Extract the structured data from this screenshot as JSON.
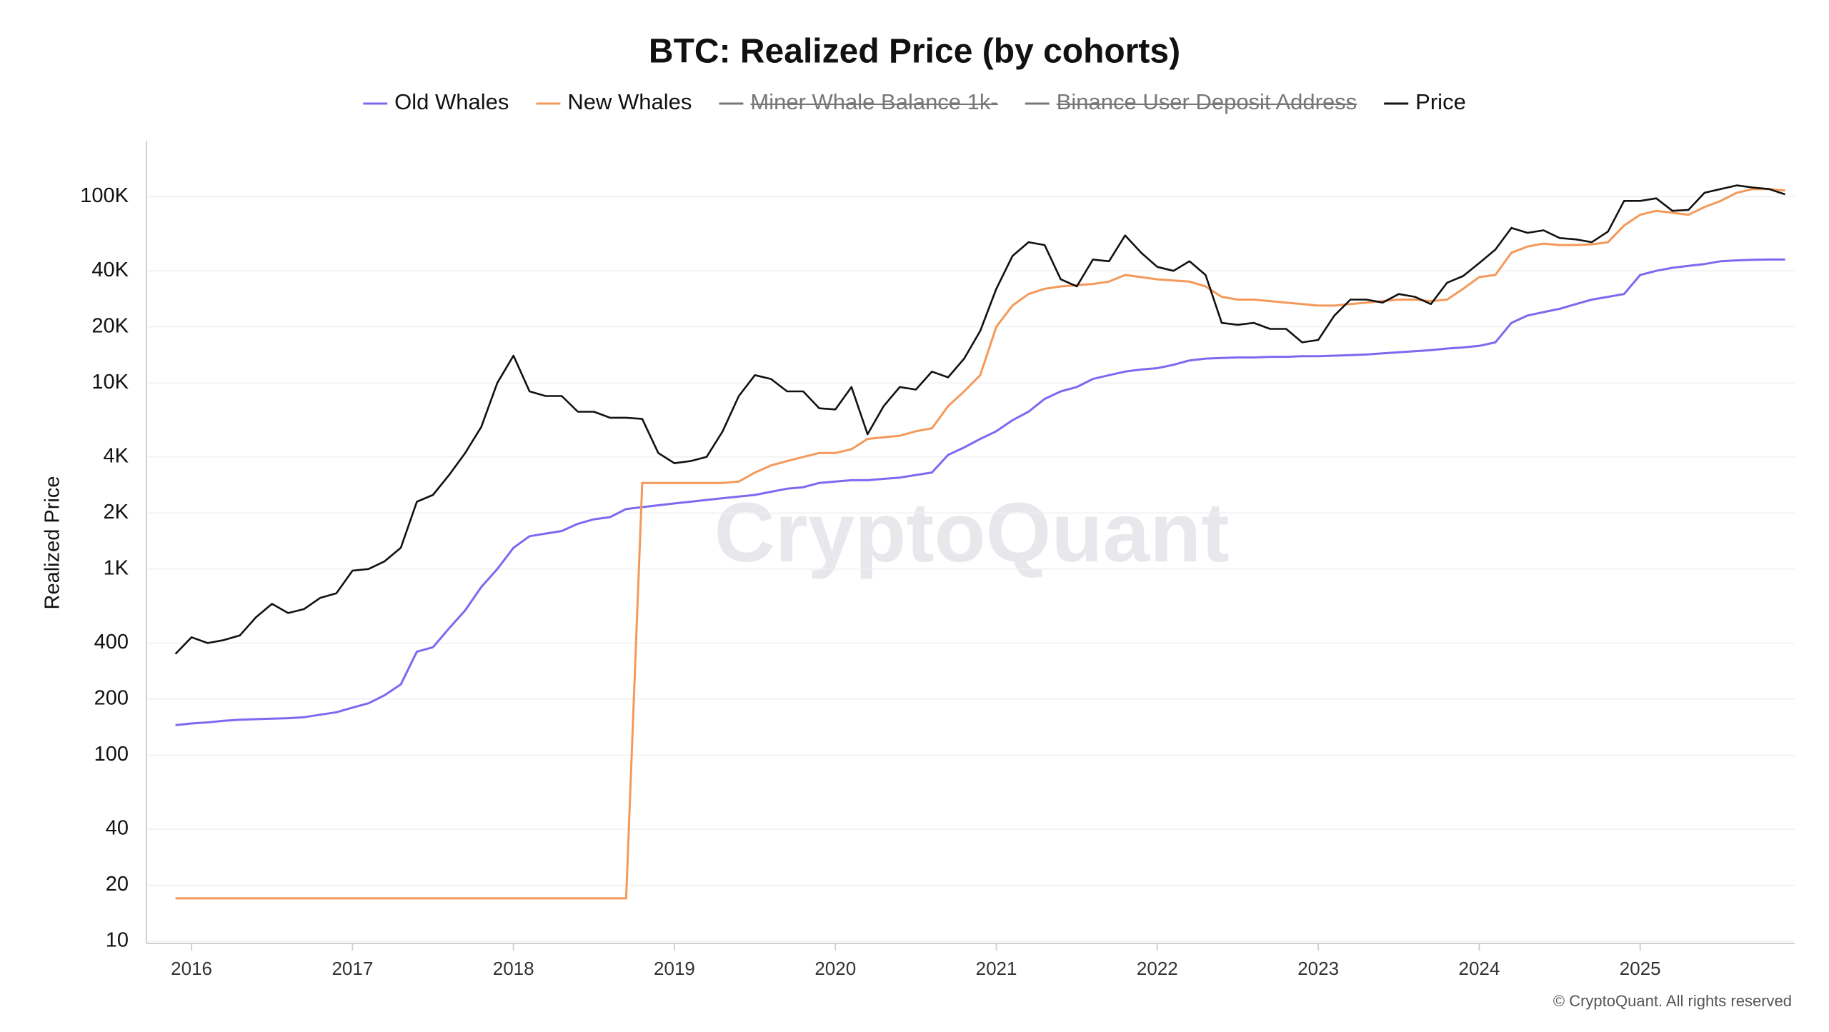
{
  "chart_data": {
    "type": "line",
    "title": "BTC: Realized Price (by cohorts)",
    "y_label": "Realized Price",
    "watermark": "CryptoQuant",
    "footer": "© CryptoQuant. All rights reserved",
    "log_scale": true,
    "grid": true,
    "x": [
      2015.9,
      2016.0,
      2016.1,
      2016.2,
      2016.3,
      2016.4,
      2016.5,
      2016.6,
      2016.7,
      2016.8,
      2016.9,
      2017.0,
      2017.1,
      2017.2,
      2017.3,
      2017.4,
      2017.5,
      2017.6,
      2017.7,
      2017.8,
      2017.9,
      2018.0,
      2018.1,
      2018.2,
      2018.3,
      2018.4,
      2018.5,
      2018.6,
      2018.7,
      2018.8,
      2018.9,
      2019.0,
      2019.1,
      2019.2,
      2019.3,
      2019.4,
      2019.5,
      2019.6,
      2019.7,
      2019.8,
      2019.9,
      2020.0,
      2020.1,
      2020.2,
      2020.3,
      2020.4,
      2020.5,
      2020.6,
      2020.7,
      2020.8,
      2020.9,
      2021.0,
      2021.1,
      2021.2,
      2021.3,
      2021.4,
      2021.5,
      2021.6,
      2021.7,
      2021.8,
      2021.9,
      2022.0,
      2022.1,
      2022.2,
      2022.3,
      2022.4,
      2022.5,
      2022.6,
      2022.7,
      2022.8,
      2022.9,
      2023.0,
      2023.1,
      2023.2,
      2023.3,
      2023.4,
      2023.5,
      2023.6,
      2023.7,
      2023.8,
      2023.9,
      2024.0,
      2024.1,
      2024.2,
      2024.3,
      2024.4,
      2024.5,
      2024.6,
      2024.7,
      2024.8,
      2024.9,
      2025.0,
      2025.1,
      2025.2,
      2025.3,
      2025.4,
      2025.5,
      2025.6,
      2025.7,
      2025.8,
      2025.9
    ],
    "xlim": [
      2015.72,
      2025.96
    ],
    "xticks": [
      2016,
      2017,
      2018,
      2019,
      2020,
      2021,
      2022,
      2023,
      2024,
      2025
    ],
    "ylim": [
      10,
      200000
    ],
    "yticks": [
      10,
      20,
      40,
      100,
      200,
      400,
      {
        "value": 1000,
        "label": "1K"
      },
      {
        "value": 2000,
        "label": "2K"
      },
      {
        "value": 4000,
        "label": "4K"
      },
      {
        "value": 10000,
        "label": "10K"
      },
      {
        "value": 20000,
        "label": "20K"
      },
      {
        "value": 40000,
        "label": "40K"
      },
      {
        "value": 100000,
        "label": "100K"
      }
    ],
    "series": [
      {
        "name": "Old Whales",
        "color": "#7b6af0",
        "values": [
          145,
          148,
          150,
          153,
          155,
          156,
          157,
          158,
          160,
          165,
          170,
          180,
          190,
          210,
          240,
          360,
          380,
          480,
          600,
          800,
          1000,
          1300,
          1500,
          1550,
          1600,
          1750,
          1850,
          1900,
          2100,
          2150,
          2200,
          2250,
          2300,
          2350,
          2400,
          2450,
          2500,
          2600,
          2700,
          2750,
          2900,
          2950,
          3000,
          3000,
          3050,
          3100,
          3200,
          3300,
          4100,
          4500,
          5000,
          5500,
          6300,
          7000,
          8200,
          9000,
          9500,
          10500,
          11000,
          11500,
          11800,
          12000,
          12500,
          13200,
          13500,
          13600,
          13700,
          13700,
          13800,
          13800,
          13900,
          13900,
          14000,
          14100,
          14200,
          14400,
          14600,
          14800,
          15000,
          15300,
          15500,
          15800,
          16500,
          21000,
          23000,
          24000,
          25000,
          26500,
          28000,
          29000,
          30000,
          38000,
          40000,
          41500,
          42500,
          43500,
          45000,
          45500,
          45800,
          46000,
          46000
        ]
      },
      {
        "name": "New Whales",
        "color": "#f4995a",
        "values": [
          17,
          17,
          17,
          17,
          17,
          17,
          17,
          17,
          17,
          17,
          17,
          17,
          17,
          17,
          17,
          17,
          17,
          17,
          17,
          17,
          17,
          17,
          17,
          17,
          17,
          17,
          17,
          17,
          17,
          2900,
          2900,
          2900,
          2900,
          2900,
          2900,
          2950,
          3300,
          3600,
          3800,
          4000,
          4200,
          4200,
          4400,
          5000,
          5100,
          5200,
          5500,
          5700,
          7500,
          9000,
          11000,
          20000,
          26000,
          30000,
          32000,
          33000,
          33500,
          34000,
          35000,
          38000,
          37000,
          36000,
          35500,
          35000,
          33000,
          29000,
          28000,
          28000,
          27500,
          27000,
          26500,
          26000,
          26000,
          26500,
          27000,
          27500,
          28000,
          28000,
          27500,
          28000,
          32000,
          37000,
          38000,
          50000,
          54000,
          56000,
          55000,
          55000,
          55500,
          57000,
          70000,
          80000,
          84000,
          82000,
          80000,
          88000,
          95000,
          105000,
          110000,
          110000,
          108000
        ]
      },
      {
        "name": "Miner Whale Balance 1k-",
        "color": "#777777",
        "hidden": true
      },
      {
        "name": "Binance User Deposit Address",
        "color": "#777777",
        "hidden": true
      },
      {
        "name": "Price",
        "color": "#111111",
        "values": [
          350,
          430,
          400,
          415,
          440,
          550,
          650,
          580,
          610,
          700,
          740,
          980,
          1000,
          1100,
          1300,
          2300,
          2500,
          3200,
          4200,
          5800,
          10000,
          14000,
          9000,
          8500,
          8500,
          7000,
          7000,
          6500,
          6500,
          6400,
          4200,
          3700,
          3800,
          4000,
          5500,
          8500,
          11000,
          10500,
          9000,
          9000,
          7300,
          7200,
          9500,
          5300,
          7500,
          9500,
          9200,
          11500,
          10700,
          13500,
          19000,
          32000,
          48000,
          57000,
          55000,
          36000,
          33000,
          46000,
          45000,
          62000,
          50000,
          42000,
          40000,
          45000,
          38000,
          21000,
          20500,
          21000,
          19500,
          19500,
          16500,
          17000,
          23000,
          28000,
          28000,
          27000,
          30000,
          29000,
          26500,
          34500,
          37500,
          44000,
          52000,
          68000,
          64000,
          66000,
          60000,
          59000,
          57000,
          65000,
          95000,
          95000,
          98000,
          84000,
          85000,
          105000,
          110000,
          115000,
          112000,
          110000,
          103000
        ]
      }
    ]
  }
}
